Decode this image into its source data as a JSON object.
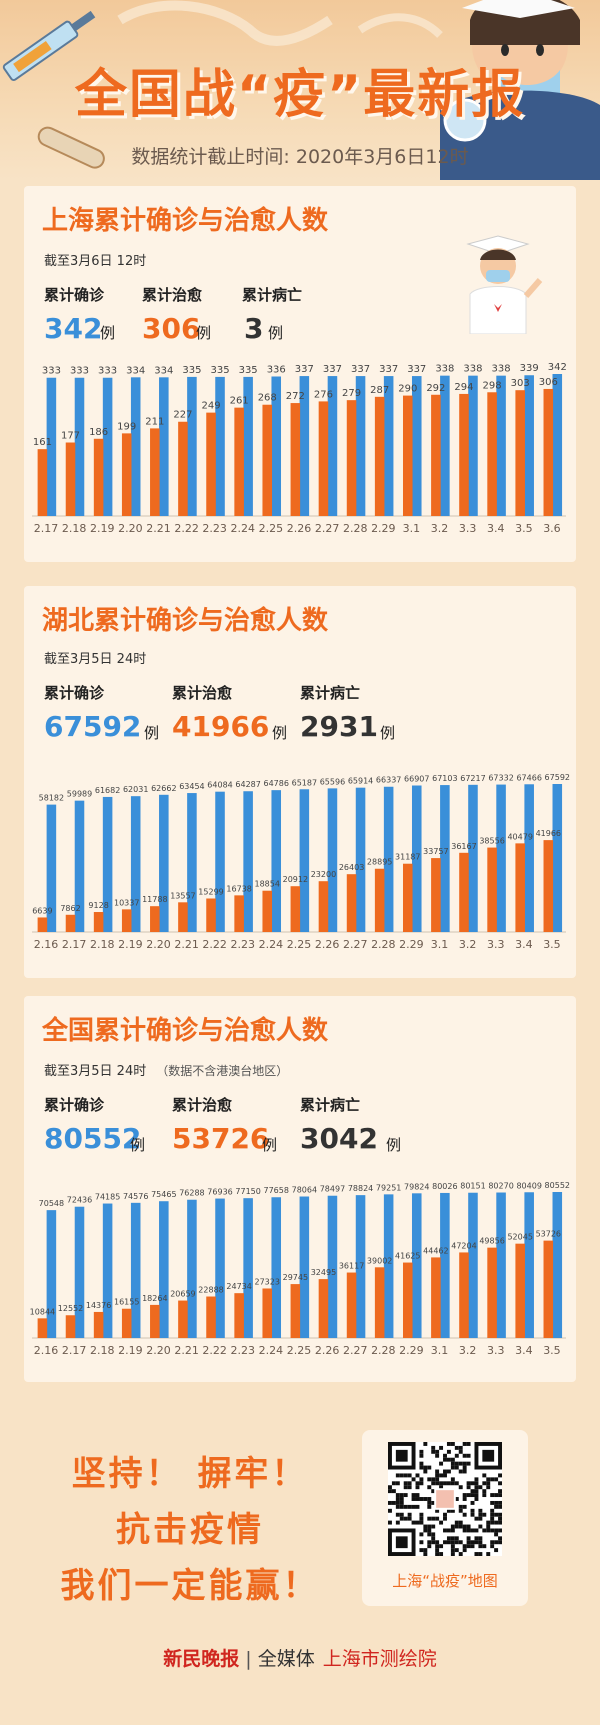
{
  "header": {
    "title": "全国战“疫”最新报",
    "subtitle": "数据统计截止时间: 2020年3月6日12时"
  },
  "colors": {
    "confirmed": "#3a8fd9",
    "cured": "#ee6a1f",
    "deaths": "#333333",
    "accent": "#ee6a1f"
  },
  "labels": {
    "confirmed": "累计确诊",
    "cured": "累计治愈",
    "deaths": "累计病亡",
    "unit": "例"
  },
  "sections": [
    {
      "title": "上海累计确诊与治愈人数",
      "date": "截至3月6日 12时",
      "note": "",
      "confirmed": "342",
      "cured": "306",
      "deaths": "3"
    },
    {
      "title": "湖北累计确诊与治愈人数",
      "date": "截至3月5日 24时",
      "note": "",
      "confirmed": "67592",
      "cured": "41966",
      "deaths": "2931"
    },
    {
      "title": "全国累计确诊与治愈人数",
      "date": "截至3月5日 24时",
      "note": "（数据不含港澳台地区）",
      "confirmed": "80552",
      "cured": "53726",
      "deaths": "3042"
    }
  ],
  "chart_data": [
    {
      "type": "bar",
      "categories": [
        "2.17",
        "2.18",
        "2.19",
        "2.20",
        "2.21",
        "2.22",
        "2.23",
        "2.24",
        "2.25",
        "2.26",
        "2.27",
        "2.28",
        "2.29",
        "3.1",
        "3.2",
        "3.3",
        "3.4",
        "3.5",
        "3.6"
      ],
      "series": [
        {
          "name": "累计确诊",
          "values": [
            333,
            333,
            333,
            334,
            334,
            335,
            335,
            335,
            336,
            337,
            337,
            337,
            337,
            337,
            338,
            338,
            338,
            339,
            342
          ]
        },
        {
          "name": "累计治愈",
          "values": [
            161,
            177,
            186,
            199,
            211,
            227,
            249,
            261,
            268,
            272,
            276,
            279,
            287,
            290,
            292,
            294,
            298,
            303,
            306
          ]
        }
      ],
      "ylim": [
        0,
        342
      ]
    },
    {
      "type": "bar",
      "categories": [
        "2.16",
        "2.17",
        "2.18",
        "2.19",
        "2.20",
        "2.21",
        "2.22",
        "2.23",
        "2.24",
        "2.25",
        "2.26",
        "2.27",
        "2.28",
        "2.29",
        "3.1",
        "3.2",
        "3.3",
        "3.4",
        "3.5"
      ],
      "series": [
        {
          "name": "累计确诊",
          "values": [
            58182,
            59989,
            61682,
            62031,
            62662,
            63454,
            64084,
            64287,
            64786,
            65187,
            65596,
            65914,
            66337,
            66907,
            67103,
            67217,
            67332,
            67466,
            67592
          ]
        },
        {
          "name": "累计治愈",
          "values": [
            6639,
            7862,
            9128,
            10337,
            11788,
            13557,
            15299,
            16738,
            18854,
            20912,
            23200,
            26403,
            28895,
            31187,
            33757,
            36167,
            38556,
            40479,
            41966
          ]
        }
      ],
      "ylim": [
        0,
        67592
      ]
    },
    {
      "type": "bar",
      "categories": [
        "2.16",
        "2.17",
        "2.18",
        "2.19",
        "2.20",
        "2.21",
        "2.22",
        "2.23",
        "2.24",
        "2.25",
        "2.26",
        "2.27",
        "2.28",
        "2.29",
        "3.1",
        "3.2",
        "3.3",
        "3.4",
        "3.5"
      ],
      "series": [
        {
          "name": "累计确诊",
          "values": [
            70548,
            72436,
            74185,
            74576,
            75465,
            76288,
            76936,
            77150,
            77658,
            78064,
            78497,
            78824,
            79251,
            79824,
            80026,
            80151,
            80270,
            80409,
            80552
          ]
        },
        {
          "name": "累计治愈",
          "values": [
            10844,
            12552,
            14376,
            16155,
            18264,
            20659,
            22888,
            24734,
            27323,
            29745,
            32495,
            36117,
            39002,
            41625,
            44462,
            47204,
            49856,
            52045,
            53726
          ]
        }
      ],
      "ylim": [
        0,
        80552
      ]
    }
  ],
  "slogan": {
    "line1": "坚持！ 摒牢！",
    "line2": "抗击疫情",
    "line3": "我们一定能赢！"
  },
  "qr": {
    "caption": "上海“战疫”地图"
  },
  "footer": {
    "brand": "新民晚报",
    "sep": "|",
    "media": "全媒体",
    "inst": "上海市测绘院"
  }
}
